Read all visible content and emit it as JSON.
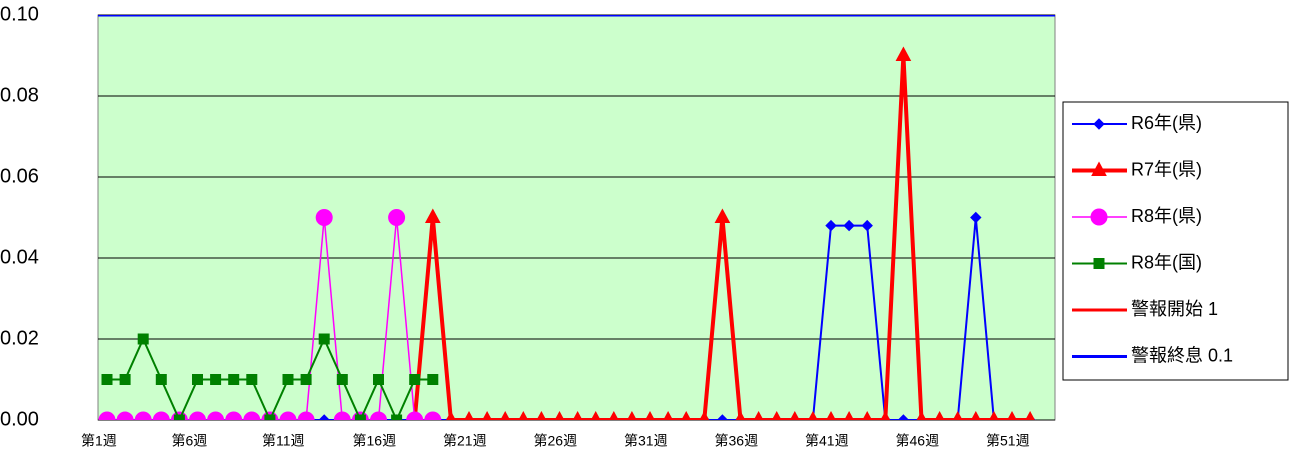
{
  "chart_data": {
    "type": "line",
    "categories": [
      "第1週",
      null,
      null,
      null,
      null,
      "第6週",
      null,
      null,
      null,
      null,
      "第11週",
      null,
      null,
      null,
      null,
      "第16週",
      null,
      null,
      null,
      null,
      "第21週",
      null,
      null,
      null,
      null,
      "第26週",
      null,
      null,
      null,
      null,
      "第31週",
      null,
      null,
      null,
      null,
      "第36週",
      null,
      null,
      null,
      null,
      "第41週",
      null,
      null,
      null,
      null,
      "第46週",
      null,
      null,
      null,
      null,
      "第51週",
      null
    ],
    "series": [
      {
        "name": "R6年(県)",
        "color": "#0000ff",
        "marker": "diamond",
        "values": [
          0,
          0,
          0,
          0,
          0,
          0,
          0,
          0,
          0,
          0,
          0,
          0,
          0,
          0,
          0,
          0,
          0,
          0,
          0,
          0,
          0,
          0,
          0,
          0,
          0,
          0,
          0,
          0,
          0,
          0,
          0,
          0,
          0,
          0,
          0,
          0,
          0,
          0,
          0,
          0,
          0.048,
          0.048,
          0.048,
          0,
          0,
          0,
          0,
          0,
          0.05,
          0,
          0,
          0
        ]
      },
      {
        "name": "R7年(県)",
        "color": "#ff0000",
        "marker": "triangle",
        "values": [
          null,
          null,
          null,
          null,
          null,
          null,
          null,
          null,
          null,
          null,
          null,
          null,
          null,
          null,
          null,
          null,
          null,
          0,
          0.05,
          0,
          0,
          0,
          0,
          0,
          0,
          0,
          0,
          0,
          0,
          0,
          0,
          0,
          0,
          0,
          0.05,
          0,
          0,
          0,
          0,
          0,
          0,
          0,
          0,
          0,
          0.09,
          0,
          0,
          0,
          0,
          0,
          0,
          0
        ]
      },
      {
        "name": "R8年(県)",
        "color": "#ff00ff",
        "marker": "circle",
        "values": [
          0,
          0,
          0,
          0,
          0,
          0,
          0,
          0,
          0,
          0,
          0,
          0,
          0.05,
          0,
          0,
          0,
          0.05,
          0,
          0,
          null,
          null,
          null,
          null,
          null,
          null,
          null,
          null,
          null,
          null,
          null,
          null,
          null,
          null,
          null,
          null,
          null,
          null,
          null,
          null,
          null,
          null,
          null,
          null,
          null,
          null,
          null,
          null,
          null,
          null,
          null,
          null,
          null
        ]
      },
      {
        "name": "R8年(国)",
        "color": "#008000",
        "marker": "square",
        "values": [
          0.01,
          0.01,
          0.02,
          0.01,
          0,
          0.01,
          0.01,
          0.01,
          0.01,
          0,
          0.01,
          0.01,
          0.02,
          0.01,
          0,
          0.01,
          0,
          0.01,
          0.01,
          null,
          null,
          null,
          null,
          null,
          null,
          null,
          null,
          null,
          null,
          null,
          null,
          null,
          null,
          null,
          null,
          null,
          null,
          null,
          null,
          null,
          null,
          null,
          null,
          null,
          null,
          null,
          null,
          null,
          null,
          null,
          null,
          null
        ]
      }
    ],
    "reference_lines": [
      {
        "name": "警報開始 1",
        "color": "#ff0000",
        "value": 1
      },
      {
        "name": "警報終息 0.1",
        "color": "#0000ff",
        "value": 0.1
      }
    ],
    "ylim": [
      0,
      0.1
    ],
    "yticks": [
      {
        "value": 0,
        "label": "0.00"
      },
      {
        "value": 0.02,
        "label": "0.02"
      },
      {
        "value": 0.04,
        "label": "0.04"
      },
      {
        "value": 0.06,
        "label": "0.06"
      },
      {
        "value": 0.08,
        "label": "0.08"
      },
      {
        "value": 0.1,
        "label": "0.10"
      }
    ],
    "grid": true,
    "plot_background": "#ccffcc",
    "legend": "right"
  }
}
